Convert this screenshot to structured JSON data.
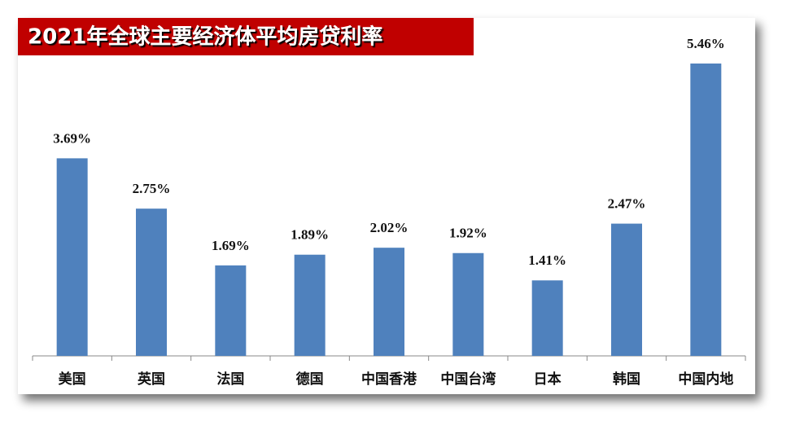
{
  "chart_data": {
    "type": "bar",
    "title": "2021年全球主要经济体平均房贷利率",
    "categories": [
      "美国",
      "英国",
      "法国",
      "德国",
      "中国香港",
      "中国台湾",
      "日本",
      "韩国",
      "中国内地"
    ],
    "values": [
      3.69,
      2.75,
      1.69,
      1.89,
      2.02,
      1.92,
      1.41,
      2.47,
      5.46
    ],
    "value_labels": [
      "3.69%",
      "2.75%",
      "1.69%",
      "1.89%",
      "2.02%",
      "1.92%",
      "1.41%",
      "2.47%",
      "5.46%"
    ],
    "color": "#4f81bd"
  }
}
